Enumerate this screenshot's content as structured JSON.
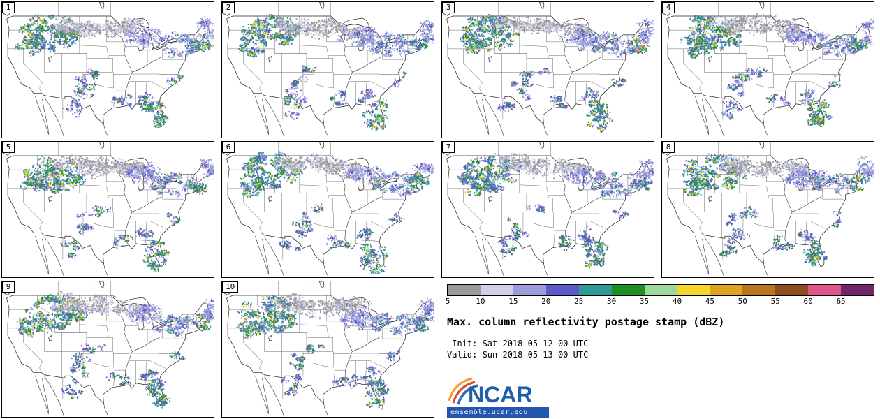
{
  "panels": [
    {
      "id": "1"
    },
    {
      "id": "2"
    },
    {
      "id": "3"
    },
    {
      "id": "4"
    },
    {
      "id": "5"
    },
    {
      "id": "6"
    },
    {
      "id": "7"
    },
    {
      "id": "8"
    },
    {
      "id": "9"
    },
    {
      "id": "10"
    }
  ],
  "colorbar": {
    "ticks": [
      "5",
      "10",
      "15",
      "20",
      "25",
      "30",
      "35",
      "40",
      "45",
      "50",
      "55",
      "60",
      "65"
    ],
    "colors": [
      "#9a9a9a",
      "#cfcfe6",
      "#9c9cdc",
      "#5a5ac8",
      "#2e9a97",
      "#1f8f1f",
      "#9bd99b",
      "#f3d62a",
      "#dda41f",
      "#b9761d",
      "#8a4f1d",
      "#e0558c",
      "#73266b"
    ]
  },
  "title": "Max. column reflectivity postage stamp (dBZ)",
  "times": {
    "init": " Init: Sat 2018-05-12 00 UTC",
    "valid": "Valid: Sun 2018-05-13 00 UTC"
  },
  "logo": {
    "text": "NCAR",
    "site": "ensemble.ucar.edu"
  }
}
